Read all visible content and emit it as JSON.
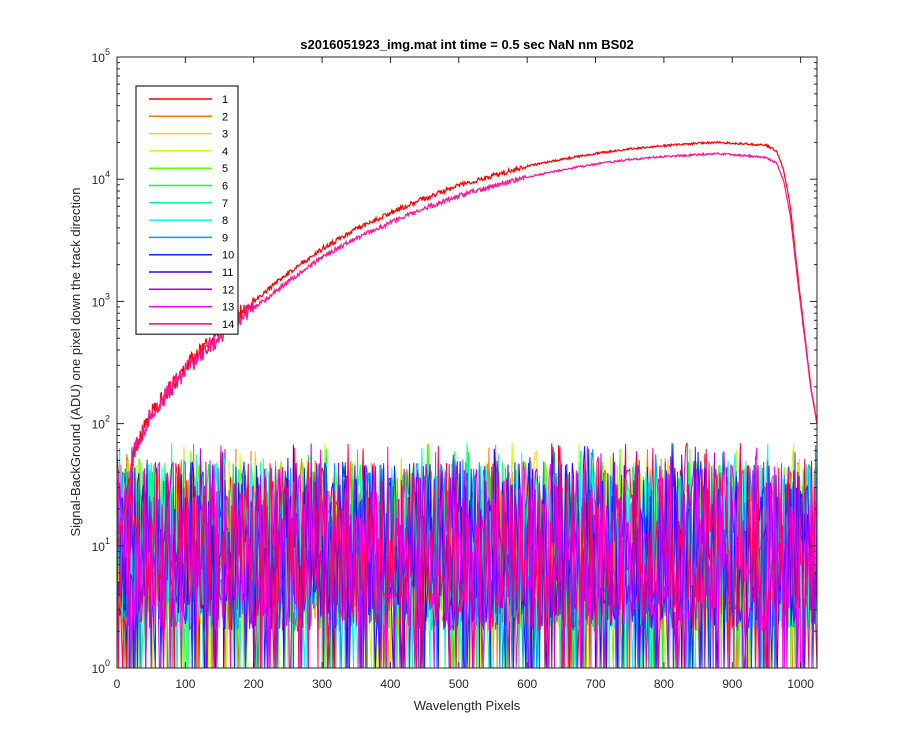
{
  "chart_data": {
    "type": "line",
    "title": "s2016051923_img.mat int time = 0.5 sec  NaN nm BS02",
    "xlabel": "Wavelength Pixels",
    "ylabel": "Signal-BackGround (ADU) one pixel down the track direction",
    "xlim": [
      0,
      1024
    ],
    "ylim": [
      1,
      100000
    ],
    "yscale": "log",
    "grid": false,
    "legend_position": "top-left",
    "x_ticks": [
      "0",
      "100",
      "200",
      "300",
      "400",
      "500",
      "600",
      "700",
      "800",
      "900",
      "1000"
    ],
    "y_ticks": [
      {
        "value": 1,
        "base": "10",
        "exp": "0"
      },
      {
        "value": 10,
        "base": "10",
        "exp": "1"
      },
      {
        "value": 100,
        "base": "10",
        "exp": "2"
      },
      {
        "value": 1000,
        "base": "10",
        "exp": "3"
      },
      {
        "value": 10000,
        "base": "10",
        "exp": "4"
      },
      {
        "value": 100000,
        "base": "10",
        "exp": "5"
      }
    ],
    "signal_series": [
      {
        "name": "1",
        "color": "#ff0000",
        "x": [
          0,
          15,
          25,
          50,
          75,
          100,
          125,
          150,
          175,
          200,
          250,
          300,
          350,
          400,
          450,
          500,
          550,
          600,
          650,
          700,
          750,
          800,
          850,
          880,
          900,
          930,
          950,
          965,
          975,
          985,
          995,
          1005,
          1015,
          1024
        ],
        "y": [
          10,
          25,
          60,
          120,
          190,
          290,
          400,
          550,
          750,
          1000,
          1700,
          2700,
          3900,
          5300,
          7000,
          8900,
          10700,
          12800,
          14500,
          16200,
          17700,
          18800,
          19700,
          20000,
          19700,
          19200,
          19000,
          17000,
          12000,
          6000,
          1800,
          600,
          200,
          100
        ]
      },
      {
        "name": "13",
        "color": "#ff1493",
        "x": [
          0,
          15,
          25,
          50,
          75,
          100,
          125,
          150,
          175,
          200,
          250,
          300,
          350,
          400,
          450,
          500,
          550,
          600,
          650,
          700,
          750,
          800,
          850,
          880,
          900,
          930,
          950,
          965,
          975,
          985,
          995,
          1005,
          1015,
          1024
        ],
        "y": [
          10,
          25,
          60,
          120,
          180,
          270,
          380,
          510,
          680,
          880,
          1450,
          2300,
          3300,
          4400,
          5800,
          7300,
          8800,
          10400,
          11900,
          13300,
          14500,
          15300,
          15900,
          16200,
          15900,
          15400,
          15000,
          13500,
          9800,
          5000,
          1600,
          550,
          190,
          100
        ]
      }
    ],
    "noise_series": [
      {
        "name": "1",
        "color": "#ff0000"
      },
      {
        "name": "2",
        "color": "#ff7700"
      },
      {
        "name": "3",
        "color": "#ffd000"
      },
      {
        "name": "4",
        "color": "#c8ff00"
      },
      {
        "name": "5",
        "color": "#5dff00"
      },
      {
        "name": "6",
        "color": "#00ff38"
      },
      {
        "name": "7",
        "color": "#00ffa0"
      },
      {
        "name": "8",
        "color": "#00fff0"
      },
      {
        "name": "9",
        "color": "#0099ff"
      },
      {
        "name": "10",
        "color": "#0033ff"
      },
      {
        "name": "11",
        "color": "#3300ff"
      },
      {
        "name": "12",
        "color": "#a000ff"
      },
      {
        "name": "13",
        "color": "#ff00ee"
      },
      {
        "name": "14",
        "color": "#ff0066"
      }
    ],
    "noise_level": {
      "typical_range": [
        2,
        50
      ],
      "typical_mean": 12
    },
    "legend": [
      "1",
      "2",
      "3",
      "4",
      "5",
      "6",
      "7",
      "8",
      "9",
      "10",
      "11",
      "12",
      "13",
      "14"
    ]
  }
}
